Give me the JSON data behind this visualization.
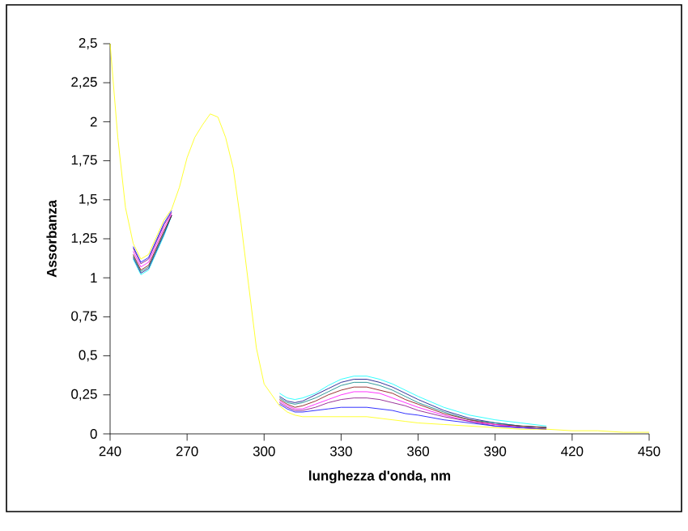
{
  "chart_data": {
    "type": "line",
    "xlabel": "lunghezza d'onda, nm",
    "ylabel": "Assorbanza",
    "x": [
      240,
      243,
      246,
      249,
      252,
      255,
      258,
      261,
      264,
      267,
      270,
      273,
      276,
      279,
      282,
      285,
      288,
      291,
      294,
      297,
      300,
      303,
      306,
      309,
      312,
      315,
      320,
      325,
      330,
      335,
      340,
      345,
      350,
      355,
      360,
      370,
      380,
      390,
      400,
      410,
      420,
      430,
      440,
      450
    ],
    "series": [
      {
        "color": "#00ffff",
        "values": [
          null,
          null,
          null,
          1.12,
          1.02,
          1.05,
          1.16,
          1.27,
          1.4,
          null,
          null,
          null,
          null,
          null,
          null,
          null,
          null,
          null,
          null,
          null,
          null,
          null,
          0.26,
          0.23,
          0.22,
          0.23,
          0.26,
          0.31,
          0.35,
          0.37,
          0.37,
          0.35,
          0.32,
          0.28,
          0.24,
          0.17,
          0.12,
          0.09,
          0.07,
          0.05,
          null,
          null,
          null,
          null
        ]
      },
      {
        "color": "#000080",
        "values": [
          null,
          null,
          null,
          1.13,
          1.03,
          1.06,
          1.17,
          1.28,
          1.4,
          null,
          null,
          null,
          null,
          null,
          null,
          null,
          null,
          null,
          null,
          null,
          null,
          null,
          0.24,
          0.21,
          0.2,
          0.21,
          0.25,
          0.29,
          0.33,
          0.35,
          0.35,
          0.33,
          0.3,
          0.26,
          0.22,
          0.15,
          0.1,
          0.07,
          0.05,
          0.04,
          null,
          null,
          null,
          null
        ]
      },
      {
        "color": "#008080",
        "values": [
          null,
          null,
          null,
          1.14,
          1.04,
          1.07,
          1.18,
          1.29,
          1.4,
          null,
          null,
          null,
          null,
          null,
          null,
          null,
          null,
          null,
          null,
          null,
          null,
          null,
          0.23,
          0.2,
          0.19,
          0.2,
          0.23,
          0.27,
          0.31,
          0.33,
          0.33,
          0.31,
          0.28,
          0.24,
          0.2,
          0.14,
          0.09,
          0.07,
          0.05,
          0.04,
          null,
          null,
          null,
          null
        ]
      },
      {
        "color": "#800000",
        "values": [
          null,
          null,
          null,
          1.15,
          1.05,
          1.08,
          1.19,
          1.3,
          1.4,
          null,
          null,
          null,
          null,
          null,
          null,
          null,
          null,
          null,
          null,
          null,
          null,
          null,
          0.22,
          0.19,
          0.17,
          0.18,
          0.21,
          0.25,
          0.28,
          0.3,
          0.3,
          0.28,
          0.26,
          0.22,
          0.19,
          0.13,
          0.09,
          0.06,
          0.05,
          0.04,
          null,
          null,
          null,
          null
        ]
      },
      {
        "color": "#ff00ff",
        "values": [
          null,
          null,
          null,
          1.17,
          1.07,
          1.1,
          1.21,
          1.32,
          1.41,
          null,
          null,
          null,
          null,
          null,
          null,
          null,
          null,
          null,
          null,
          null,
          null,
          null,
          0.21,
          0.18,
          0.16,
          0.16,
          0.19,
          0.22,
          0.25,
          0.27,
          0.27,
          0.26,
          0.23,
          0.2,
          0.17,
          0.12,
          0.08,
          0.06,
          0.04,
          0.03,
          null,
          null,
          null,
          null
        ]
      },
      {
        "color": "#800080",
        "values": [
          null,
          null,
          null,
          1.19,
          1.09,
          1.12,
          1.23,
          1.34,
          1.42,
          null,
          null,
          null,
          null,
          null,
          null,
          null,
          null,
          null,
          null,
          null,
          null,
          null,
          0.2,
          0.17,
          0.15,
          0.15,
          0.17,
          0.2,
          0.22,
          0.23,
          0.23,
          0.22,
          0.2,
          0.18,
          0.15,
          0.11,
          0.08,
          0.05,
          0.04,
          0.03,
          null,
          null,
          null,
          null
        ]
      },
      {
        "color": "#0000ff",
        "values": [
          null,
          null,
          null,
          1.2,
          1.1,
          1.13,
          1.24,
          1.35,
          1.43,
          null,
          null,
          null,
          null,
          null,
          null,
          null,
          null,
          null,
          null,
          null,
          null,
          null,
          0.19,
          0.16,
          0.14,
          0.14,
          0.15,
          0.16,
          0.17,
          0.17,
          0.17,
          0.16,
          0.15,
          0.13,
          0.12,
          0.09,
          0.07,
          0.05,
          0.04,
          0.03,
          null,
          null,
          null,
          null
        ]
      },
      {
        "color": "#ffff00",
        "values": [
          2.5,
          1.9,
          1.45,
          1.22,
          1.12,
          1.15,
          1.26,
          1.37,
          1.44,
          1.58,
          1.77,
          1.9,
          1.98,
          2.05,
          2.03,
          1.9,
          1.7,
          1.35,
          0.95,
          0.55,
          0.32,
          0.25,
          0.18,
          0.14,
          0.12,
          0.11,
          0.11,
          0.11,
          0.11,
          0.11,
          0.11,
          0.1,
          0.09,
          0.08,
          0.07,
          0.06,
          0.05,
          0.04,
          0.03,
          0.03,
          0.02,
          0.02,
          0.01,
          0.01
        ]
      }
    ],
    "xlim": [
      240,
      450
    ],
    "xticks": [
      240,
      270,
      300,
      330,
      360,
      390,
      420,
      450
    ],
    "ylim": [
      0,
      2.5
    ],
    "yticks": [
      0,
      {
        "value": 0.25,
        "label": "0,25"
      },
      {
        "value": 0.5,
        "label": "0,5"
      },
      {
        "value": 0.75,
        "label": "0,75"
      },
      1,
      {
        "value": 1.25,
        "label": "1,25"
      },
      {
        "value": 1.5,
        "label": "1,5"
      },
      {
        "value": 1.75,
        "label": "1,75"
      },
      2,
      {
        "value": 2.25,
        "label": "2,25"
      },
      {
        "value": 2.5,
        "label": "2,5"
      }
    ],
    "grid": false,
    "marker": "none",
    "line_style": "solid"
  }
}
